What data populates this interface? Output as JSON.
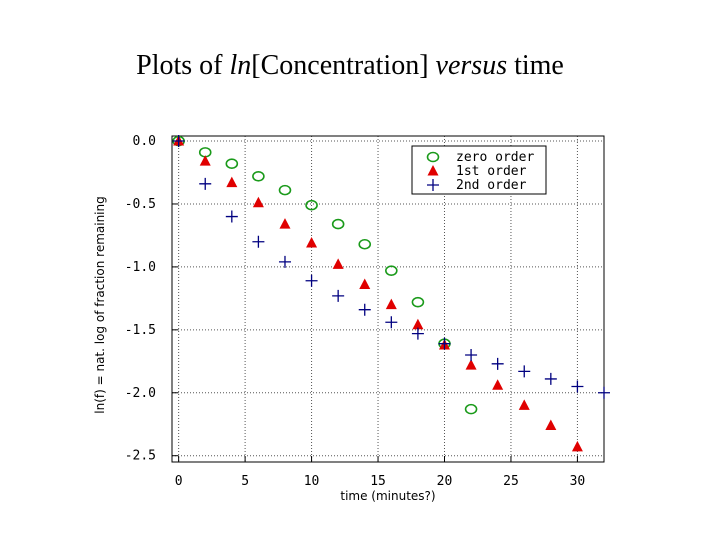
{
  "title": {
    "part1": "Plots of ",
    "part2": "ln",
    "part3": "[Concentration] ",
    "part4": "versus",
    "part5": " time"
  },
  "colors": {
    "zero": "#1a9a1a",
    "first": "#e00000",
    "second": "#000080",
    "grid": "#555555"
  },
  "chart_data": {
    "type": "scatter",
    "title": "Plots of ln[Concentration] versus time",
    "xlabel": "time (minutes?)",
    "ylabel": "ln(f) = nat. log of fraction remaining",
    "xlim": [
      -0.5,
      32
    ],
    "ylim": [
      -2.55,
      0.04
    ],
    "xticks": [
      0,
      5,
      10,
      15,
      20,
      25,
      30
    ],
    "xtick_labels": [
      "0",
      "5",
      "10",
      "15",
      "20",
      "25",
      "30"
    ],
    "yticks": [
      0,
      -0.5,
      -1.0,
      -1.5,
      -2.0,
      -2.5
    ],
    "ytick_labels": [
      "0.0",
      "-0.5",
      "-1.0",
      "-1.5",
      "-2.0",
      "-2.5"
    ],
    "grid": true,
    "legend_position": "top-right",
    "series": [
      {
        "name": "zero order",
        "marker": "circle",
        "x": [
          0,
          2,
          4,
          6,
          8,
          10,
          12,
          14,
          16,
          18,
          20,
          22
        ],
        "y": [
          0.0,
          -0.09,
          -0.18,
          -0.28,
          -0.39,
          -0.51,
          -0.66,
          -0.82,
          -1.03,
          -1.28,
          -1.61,
          -2.13
        ]
      },
      {
        "name": "1st order",
        "marker": "triangle",
        "x": [
          0,
          2,
          4,
          6,
          8,
          10,
          12,
          14,
          16,
          18,
          20,
          22,
          24,
          26,
          28,
          30
        ],
        "y": [
          0.0,
          -0.16,
          -0.33,
          -0.49,
          -0.66,
          -0.81,
          -0.98,
          -1.14,
          -1.3,
          -1.46,
          -1.62,
          -1.78,
          -1.94,
          -2.1,
          -2.26,
          -2.43
        ]
      },
      {
        "name": "2nd order",
        "marker": "plus",
        "x": [
          0,
          2,
          4,
          6,
          8,
          10,
          12,
          14,
          16,
          18,
          20,
          22,
          24,
          26,
          28,
          30,
          32
        ],
        "y": [
          0.0,
          -0.34,
          -0.6,
          -0.8,
          -0.96,
          -1.11,
          -1.23,
          -1.34,
          -1.44,
          -1.53,
          -1.61,
          -1.7,
          -1.77,
          -1.83,
          -1.89,
          -1.95,
          -2.0
        ]
      }
    ]
  }
}
